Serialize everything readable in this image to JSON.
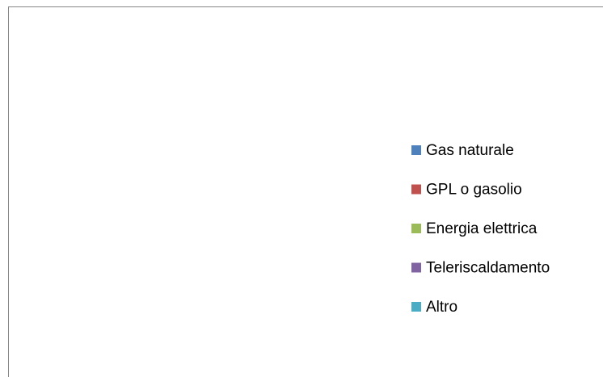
{
  "chart_data": {
    "type": "pie",
    "categories": [
      "Gas naturale",
      "GPL o gasolio",
      "Energia elettrica",
      "Teleriscaldamento",
      "Altro"
    ],
    "colors": [
      "#4f81bd",
      "#c0504d",
      "#9bbb59",
      "#8064a2",
      "#4bacc6"
    ],
    "legend": "right"
  }
}
